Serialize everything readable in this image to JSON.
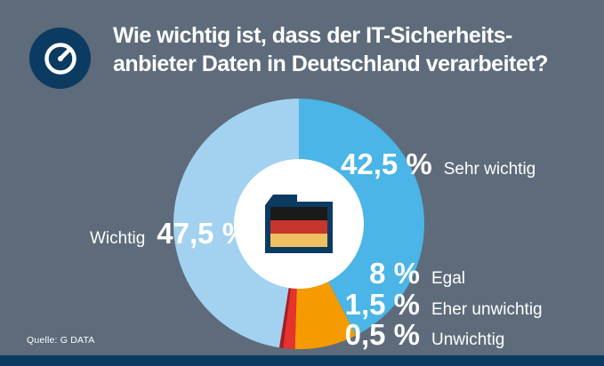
{
  "colors": {
    "background": "#5e6b7b",
    "navy": "#0c3b62",
    "text": "#ffffff"
  },
  "header": {
    "icon": "gauge-icon",
    "title_lines": [
      "Wie wichtig ist, dass der IT-Sicherheits-",
      "anbieter Daten in Deutschland verarbeitet?"
    ]
  },
  "chart_data": {
    "type": "pie",
    "style": "donut",
    "title": "Wie wichtig ist, dass der IT-Sicherheitsanbieter Daten in Deutschland verarbeitet?",
    "start_angle_deg": -90,
    "direction": "clockwise",
    "legend_position": "callouts",
    "center_icon": "germany-flag-folder-icon",
    "segments": [
      {
        "label": "Sehr wichtig",
        "value": 42.5,
        "value_text": "42,5 %",
        "color": "#4ab5e6"
      },
      {
        "label": "Egal",
        "value": 8,
        "value_text": "8 %",
        "color": "#f59b00"
      },
      {
        "label": "Eher unwichtig",
        "value": 1.5,
        "value_text": "1,5 %",
        "color": "#e5332d"
      },
      {
        "label": "Unwichtig",
        "value": 0.5,
        "value_text": "0,5 %",
        "color": "#a61e22"
      },
      {
        "label": "Wichtig",
        "value": 47.5,
        "value_text": "47,5 %",
        "color": "#a3d2f0"
      }
    ]
  },
  "icons": {
    "folder_navy": "#0c3b62",
    "germany_flag": {
      "black": "#1a1a1a",
      "red": "#c5352c",
      "gold": "#f0c060"
    }
  },
  "source": {
    "text": "Quelle: G DATA"
  }
}
